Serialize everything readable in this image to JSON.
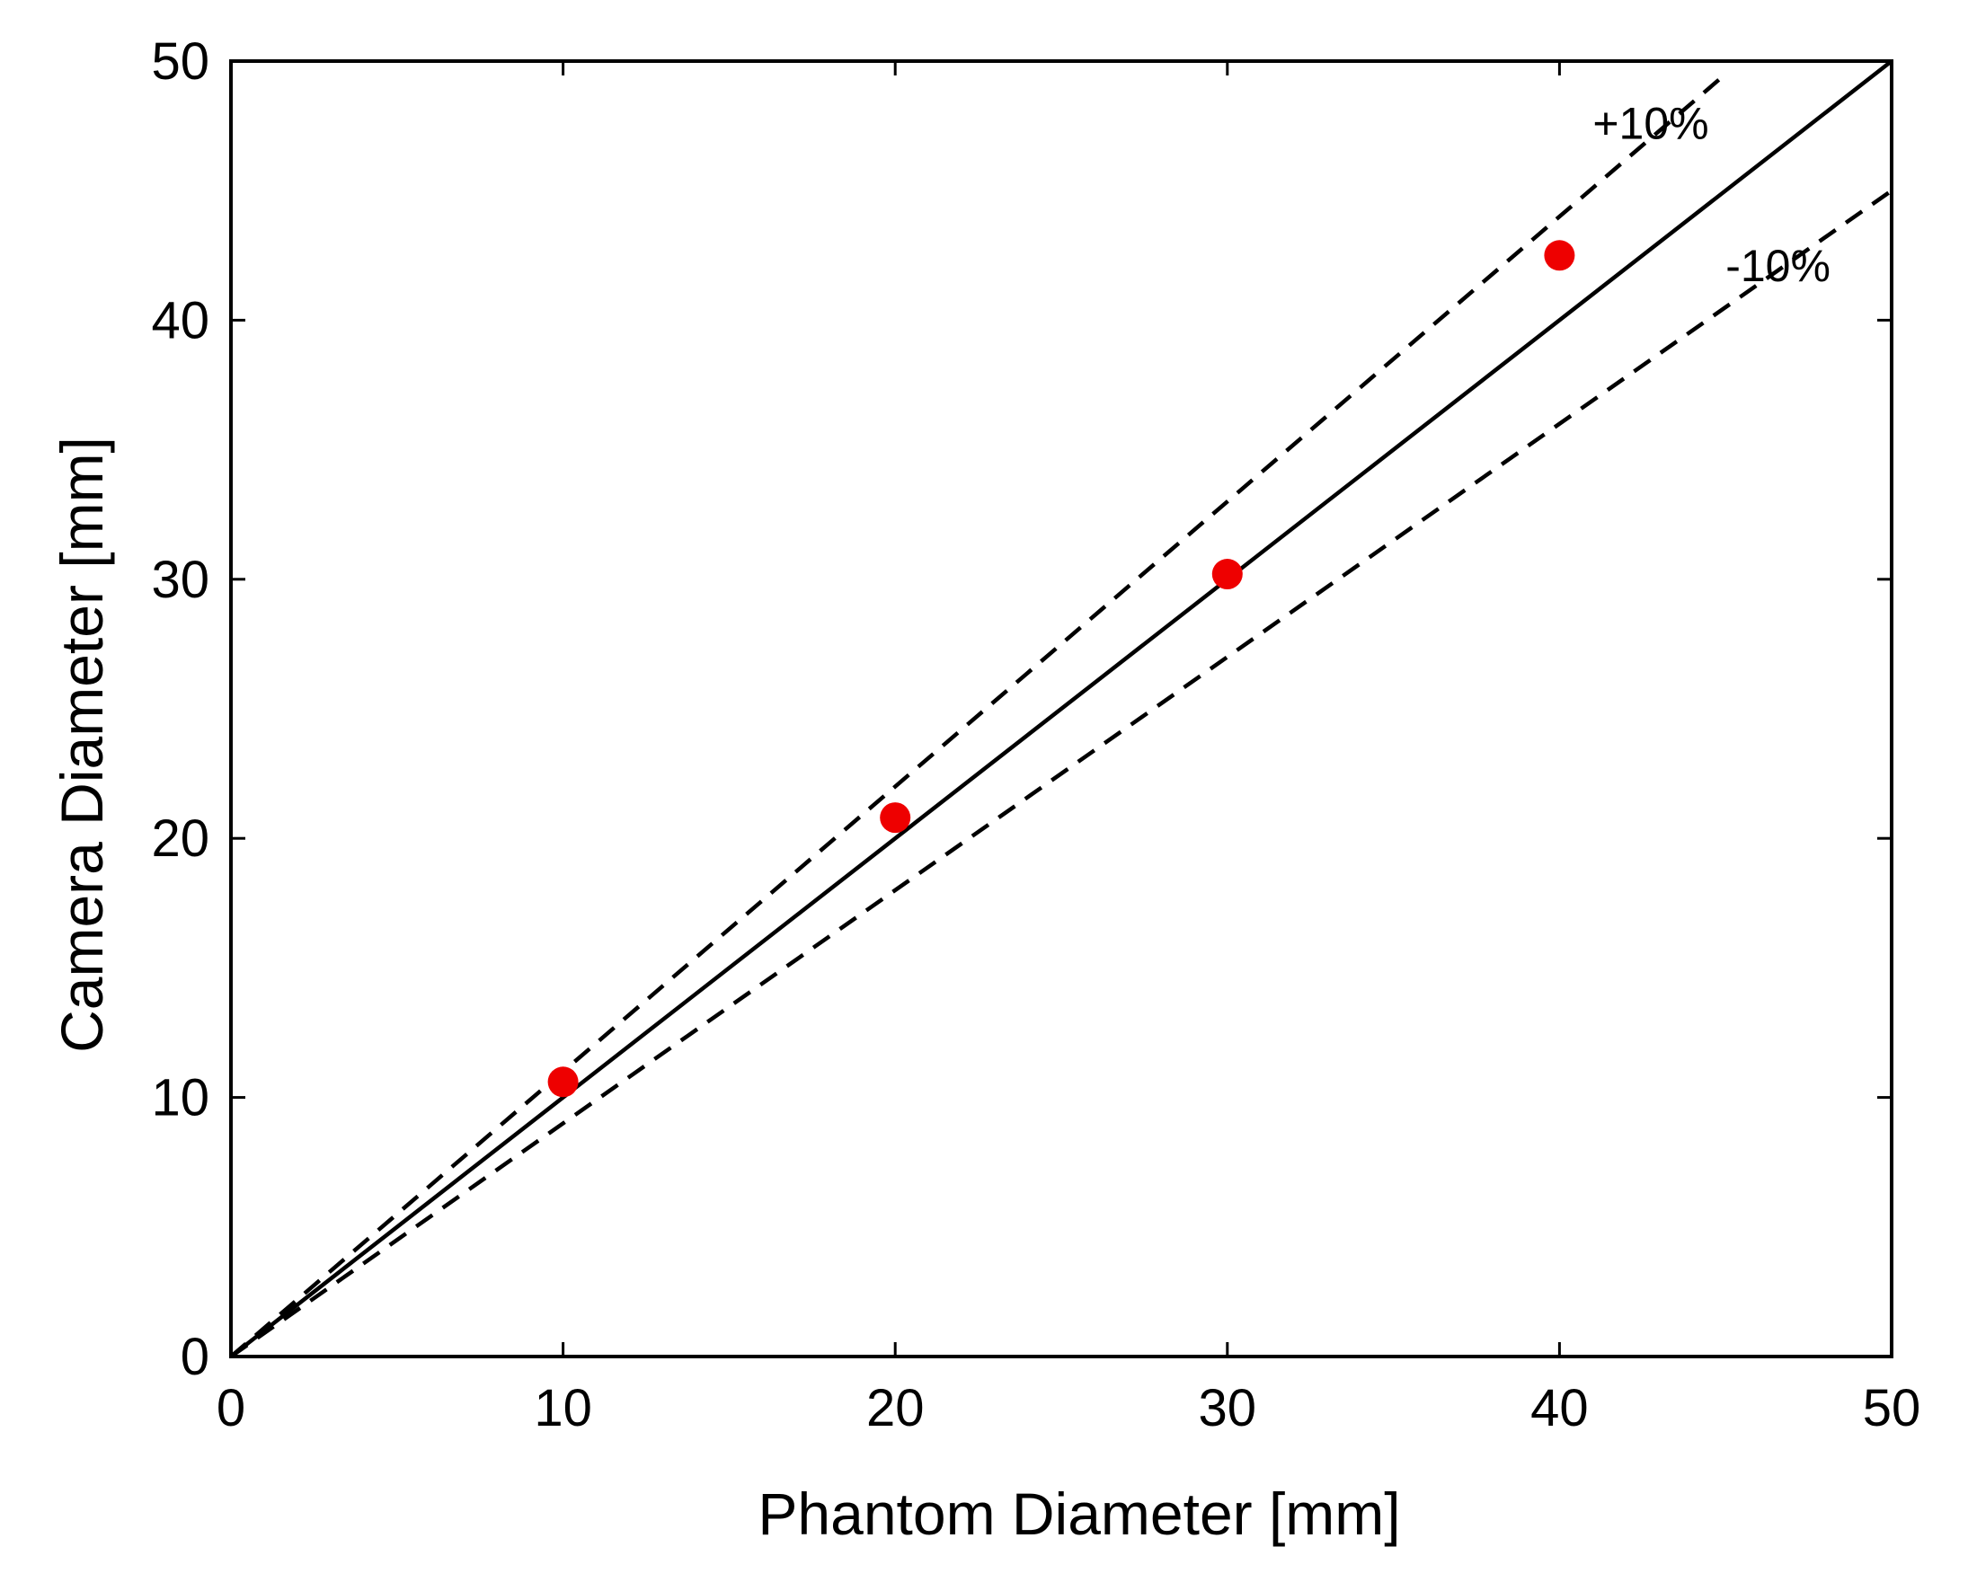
{
  "chart_data": {
    "type": "scatter",
    "title": "",
    "xlabel": "Phantom Diameter [mm]",
    "ylabel": "Camera Diameter [mm]",
    "xlim": [
      0,
      50
    ],
    "ylim": [
      0,
      50
    ],
    "xticks": [
      "0",
      "10",
      "20",
      "30",
      "40",
      "50"
    ],
    "yticks": [
      "0",
      "10",
      "20",
      "30",
      "40",
      "50"
    ],
    "grid": false,
    "series": [
      {
        "name": "measurements",
        "kind": "scatter",
        "color": "#ee0000",
        "x": [
          10,
          20,
          30,
          40
        ],
        "y": [
          10.6,
          20.8,
          30.2,
          42.5
        ]
      },
      {
        "name": "identity",
        "kind": "line",
        "style": "solid",
        "color": "#000000",
        "x": [
          0,
          50
        ],
        "y": [
          0,
          50
        ]
      },
      {
        "name": "+10%",
        "kind": "line",
        "style": "dashed",
        "color": "#000000",
        "x": [
          0,
          45
        ],
        "y": [
          0,
          49.5
        ]
      },
      {
        "name": "-10%",
        "kind": "line",
        "style": "dashed",
        "color": "#000000",
        "x": [
          0,
          50
        ],
        "y": [
          0,
          45
        ]
      }
    ],
    "annotations": [
      {
        "text": "+10%",
        "x": 41,
        "y": 47,
        "series": "+10%"
      },
      {
        "text": "-10%",
        "x": 45,
        "y": 41.5,
        "series": "-10%"
      }
    ]
  }
}
